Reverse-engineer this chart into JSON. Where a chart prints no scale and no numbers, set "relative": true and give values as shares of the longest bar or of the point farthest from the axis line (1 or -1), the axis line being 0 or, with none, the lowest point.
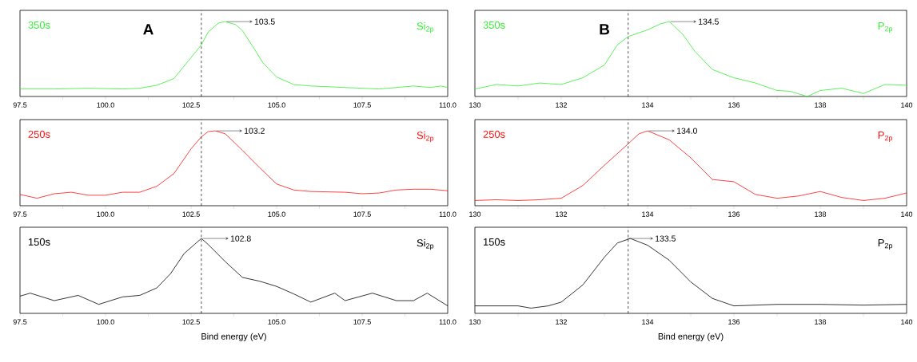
{
  "chart_data": [
    {
      "type": "line",
      "relative": true,
      "title": "350s",
      "xlim": [
        97.5,
        110
      ],
      "xticks": [
        97.5,
        {
          "value": 98.75,
          "label": null
        },
        {
          "value": 100,
          "label": "100.0"
        },
        {
          "value": 101.25,
          "label": null
        },
        102.5,
        {
          "value": 103.75,
          "label": null
        },
        {
          "value": 105,
          "label": "105.0"
        },
        {
          "value": 106.25,
          "label": null
        },
        107.5,
        {
          "value": 108.75,
          "label": null
        },
        {
          "value": 110,
          "label": "110.0"
        }
      ],
      "tick_labels": "x",
      "ref_lines": [
        {
          "axis": "x",
          "value": 102.8,
          "line_style": "dashed"
        }
      ],
      "annotations": [
        "A",
        {
          "text": "103.5",
          "x": 103.5,
          "y": 1
        }
      ],
      "series": [
        {
          "name": "Si$_{2p}$",
          "color": "#33ee33",
          "x": [
            97.5,
            98.5,
            99.5,
            100.5,
            101.0,
            101.5,
            102.0,
            102.5,
            102.8,
            103.0,
            103.3,
            103.5,
            103.8,
            104.0,
            104.3,
            104.6,
            105.0,
            105.5,
            106.0,
            107.0,
            108.0,
            109.0,
            109.5,
            109.8,
            110
          ],
          "values": [
            0.1,
            0.1,
            0.11,
            0.1,
            0.11,
            0.15,
            0.24,
            0.52,
            0.69,
            0.86,
            0.98,
            1.0,
            0.96,
            0.88,
            0.67,
            0.45,
            0.26,
            0.16,
            0.14,
            0.12,
            0.1,
            0.14,
            0.12,
            0.14,
            0.12
          ]
        }
      ]
    },
    {
      "type": "line",
      "relative": true,
      "title": "350s",
      "xlim": [
        130,
        140
      ],
      "xticks": [
        130,
        {
          "value": 131,
          "label": null
        },
        132,
        {
          "value": 133,
          "label": null
        },
        134,
        {
          "value": 135,
          "label": null
        },
        136,
        {
          "value": 137,
          "label": null
        },
        138,
        {
          "value": 139,
          "label": null
        },
        140
      ],
      "tick_labels": "x",
      "ref_lines": [
        {
          "axis": "x",
          "value": 133.55,
          "line_style": "dashed"
        }
      ],
      "annotations": [
        "B",
        {
          "text": "134.5",
          "x": 134.5,
          "y": 1
        }
      ],
      "series": [
        {
          "name": "P$_{2p}$",
          "color": "#33ee33",
          "x": [
            130,
            130.5,
            131,
            131.5,
            132,
            132.5,
            133,
            133.3,
            133.55,
            134,
            134.3,
            134.5,
            134.8,
            135.1,
            135.5,
            136,
            136.5,
            137,
            137.3,
            137.7,
            138,
            138.5,
            139,
            139.5,
            140
          ],
          "values": [
            0.1,
            0.16,
            0.14,
            0.18,
            0.16,
            0.25,
            0.42,
            0.69,
            0.8,
            0.89,
            0.97,
            1.0,
            0.84,
            0.6,
            0.36,
            0.25,
            0.18,
            0.08,
            0.07,
            0.0,
            0.08,
            0.11,
            0.04,
            0.16,
            0.15
          ]
        }
      ]
    },
    {
      "type": "line",
      "relative": true,
      "title": "250s",
      "xlim": [
        97.5,
        110
      ],
      "xticks": [
        97.5,
        {
          "value": 98.75,
          "label": null
        },
        {
          "value": 100,
          "label": "100.0"
        },
        {
          "value": 101.25,
          "label": null
        },
        102.5,
        {
          "value": 103.75,
          "label": null
        },
        {
          "value": 105,
          "label": "105.0"
        },
        {
          "value": 106.25,
          "label": null
        },
        107.5,
        {
          "value": 108.75,
          "label": null
        },
        {
          "value": 110,
          "label": "110.0"
        }
      ],
      "tick_labels": "x",
      "ref_lines": [
        {
          "axis": "x",
          "value": 102.8,
          "line_style": "dashed"
        }
      ],
      "annotations": [
        {
          "text": "103.2",
          "x": 103.2,
          "y": 1
        }
      ],
      "series": [
        {
          "name": "Si$_{2p}$",
          "color": "#ff1111",
          "x": [
            97.5,
            98.0,
            98.5,
            99.0,
            99.5,
            100.0,
            100.5,
            101.0,
            101.5,
            102.0,
            102.5,
            102.8,
            103.0,
            103.2,
            103.5,
            104.0,
            104.5,
            105.0,
            105.5,
            106.0,
            107.0,
            107.5,
            108.0,
            108.5,
            109.0,
            109.5,
            110
          ],
          "values": [
            0.15,
            0.1,
            0.16,
            0.18,
            0.14,
            0.14,
            0.18,
            0.18,
            0.26,
            0.43,
            0.76,
            0.92,
            0.99,
            1.0,
            0.96,
            0.74,
            0.51,
            0.29,
            0.21,
            0.19,
            0.18,
            0.16,
            0.17,
            0.21,
            0.22,
            0.22,
            0.2
          ]
        }
      ]
    },
    {
      "type": "line",
      "relative": true,
      "title": "250s",
      "xlim": [
        130,
        140
      ],
      "xticks": [
        130,
        {
          "value": 131,
          "label": null
        },
        132,
        {
          "value": 133,
          "label": null
        },
        134,
        {
          "value": 135,
          "label": null
        },
        136,
        {
          "value": 137,
          "label": null
        },
        138,
        {
          "value": 139,
          "label": null
        },
        140
      ],
      "tick_labels": "x",
      "ref_lines": [
        {
          "axis": "x",
          "value": 133.55,
          "line_style": "dashed"
        }
      ],
      "annotations": [
        {
          "text": "134.0",
          "x": 134.0,
          "y": 1
        }
      ],
      "series": [
        {
          "name": "P$_{2p}$",
          "color": "#ff1111",
          "x": [
            130,
            130.5,
            131,
            131.5,
            132,
            132.5,
            133,
            133.5,
            133.8,
            134,
            134.5,
            135,
            135.5,
            136,
            136.5,
            137,
            137.5,
            138,
            138.5,
            139,
            139.5,
            140
          ],
          "values": [
            0.07,
            0.08,
            0.07,
            0.08,
            0.1,
            0.27,
            0.54,
            0.8,
            0.96,
            1.0,
            0.88,
            0.64,
            0.35,
            0.32,
            0.15,
            0.1,
            0.13,
            0.19,
            0.11,
            0.07,
            0.1,
            0.17
          ]
        }
      ]
    },
    {
      "type": "line",
      "relative": true,
      "title": "150s",
      "xlabel": "Bind energy (eV)",
      "xlim": [
        97.5,
        110
      ],
      "xticks": [
        97.5,
        {
          "value": 98.75,
          "label": null
        },
        {
          "value": 100,
          "label": "100.0"
        },
        {
          "value": 101.25,
          "label": null
        },
        102.5,
        {
          "value": 103.75,
          "label": null
        },
        {
          "value": 105,
          "label": "105.0"
        },
        {
          "value": 106.25,
          "label": null
        },
        107.5,
        {
          "value": 108.75,
          "label": null
        },
        {
          "value": 110,
          "label": "110.0"
        }
      ],
      "tick_labels": "x",
      "ref_lines": [
        {
          "axis": "x",
          "value": 102.8,
          "line_style": "dashed"
        }
      ],
      "annotations": [
        {
          "text": "102.8",
          "x": 102.8,
          "y": 1
        }
      ],
      "series": [
        {
          "name": "Si$_{2p}$",
          "color": "#000000",
          "x": [
            97.5,
            97.8,
            98.5,
            99.2,
            99.8,
            100.5,
            101.0,
            101.5,
            101.9,
            102.3,
            102.6,
            102.8,
            103.0,
            103.5,
            104.0,
            104.5,
            105.0,
            105.5,
            106.0,
            106.7,
            107.0,
            107.8,
            108.5,
            109.0,
            109.4,
            110
          ],
          "values": [
            0.23,
            0.27,
            0.17,
            0.24,
            0.12,
            0.22,
            0.24,
            0.34,
            0.53,
            0.8,
            0.92,
            1.0,
            0.92,
            0.69,
            0.48,
            0.43,
            0.36,
            0.26,
            0.15,
            0.27,
            0.17,
            0.27,
            0.17,
            0.17,
            0.27,
            0.1
          ]
        }
      ]
    },
    {
      "type": "line",
      "relative": true,
      "title": "150s",
      "xlabel": "Bind energy (eV)",
      "xlim": [
        130,
        140
      ],
      "xticks": [
        130,
        {
          "value": 131,
          "label": null
        },
        132,
        {
          "value": 133,
          "label": null
        },
        134,
        {
          "value": 135,
          "label": null
        },
        136,
        {
          "value": 137,
          "label": null
        },
        138,
        {
          "value": 139,
          "label": null
        },
        140
      ],
      "tick_labels": "x",
      "ref_lines": [
        {
          "axis": "x",
          "value": 133.55,
          "line_style": "dashed"
        }
      ],
      "annotations": [
        {
          "text": "133.5",
          "x": 133.5,
          "y": 1
        }
      ],
      "series": [
        {
          "name": "P$_{2p}$",
          "color": "#000000",
          "x": [
            130,
            131,
            131.3,
            131.7,
            132,
            132.5,
            133,
            133.3,
            133.6,
            134,
            134.5,
            135,
            135.5,
            136,
            137,
            138,
            139,
            140
          ],
          "values": [
            0.1,
            0.1,
            0.07,
            0.1,
            0.15,
            0.38,
            0.75,
            0.94,
            1.0,
            0.91,
            0.71,
            0.42,
            0.2,
            0.1,
            0.12,
            0.12,
            0.11,
            0.12
          ]
        }
      ]
    }
  ]
}
